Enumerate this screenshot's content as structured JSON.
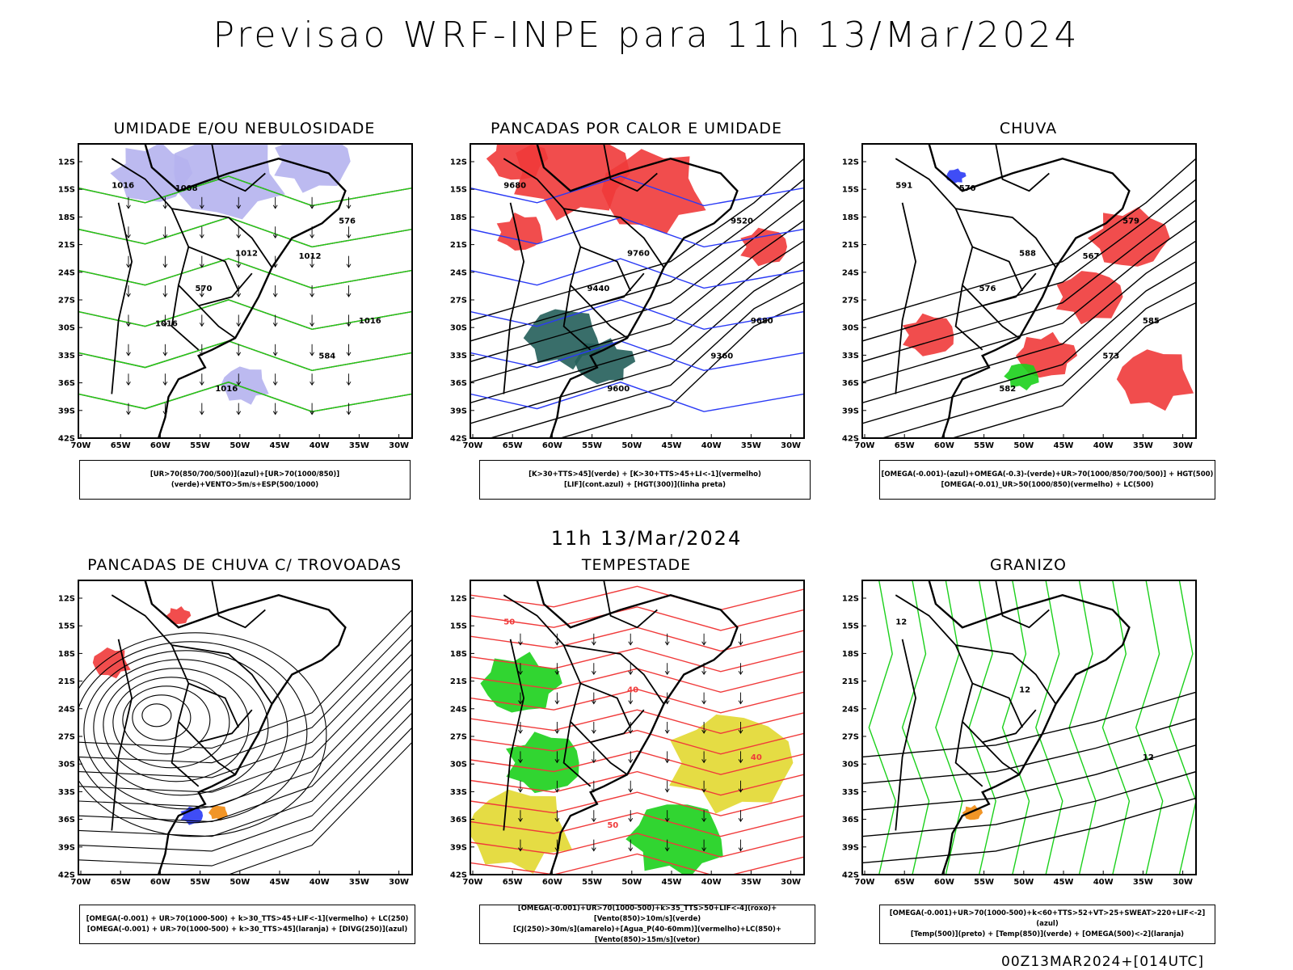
{
  "title": "Previsao WRF-INPE  para 11h 13/Mar/2024",
  "middle_title": "11h 13/Mar/2024",
  "footer": "00Z13MAR2024+[014UTC]",
  "lat_ticks": [
    "12S",
    "15S",
    "18S",
    "21S",
    "24S",
    "27S",
    "30S",
    "33S",
    "36S",
    "39S",
    "42S"
  ],
  "lon_ticks": [
    "70W",
    "65W",
    "60W",
    "55W",
    "50W",
    "45W",
    "40W",
    "35W",
    "30W"
  ],
  "colors": {
    "lavender": "#b5b3ee",
    "red": "#f03a3a",
    "green": "#1bd01b",
    "darkteal": "#235e5a",
    "blue": "#2a3af5",
    "yellow": "#e2d830",
    "orange": "#f08a10"
  },
  "panels": [
    {
      "title": "UMIDADE E/OU NEBULOSIDADE",
      "legend_lines": [
        "[UR>70(850/700/500)](azul)+[UR>70(1000/850)](verde)+VENTO>5m/s+ESP(500/1000)"
      ],
      "labels": [
        "1016",
        "1012",
        "1016",
        "1016",
        "576",
        "570",
        "584",
        "1008",
        "1012",
        "1016"
      ]
    },
    {
      "title": "PANCADAS POR CALOR E UMIDADE",
      "legend_lines": [
        "[K>30+TTS>45](verde) + [K>30+TTS>45+LI<-1](vermelho)",
        "[LIF](cont.azul) + [HGT(300)](linha preta)"
      ],
      "labels": [
        "9680",
        "9760",
        "9680",
        "9600",
        "9520",
        "9440",
        "9360"
      ]
    },
    {
      "title": "CHUVA",
      "legend_lines": [
        "[OMEGA(-0.001)-(azul)+OMEGA(-0.3)-(verde)+UR>70(1000/850/700/500)] + HGT(500)",
        "[OMEGA(-0.01)_UR>50(1000/850)(vermelho) + LC(500)"
      ],
      "labels": [
        "591",
        "588",
        "585",
        "582",
        "579",
        "576",
        "573",
        "570",
        "567"
      ]
    },
    {
      "title": "PANCADAS DE CHUVA C/ TROVOADAS",
      "legend_lines": [
        "[OMEGA(-0.001) + UR>70(1000-500) + k>30_TTS>45+LIF<-1](vermelho) + LC(250)",
        "[OMEGA(-0.001) + UR>70(1000-500) + k>30_TTS>45](laranja) + [DIVG(250)](azul)"
      ],
      "labels": []
    },
    {
      "title": "TEMPESTADE",
      "legend_lines": [
        "[OMEGA(-0.001)+UR>70(1000-500)+k>35_TTS>50+LIF<-4](roxo)+[Vento(850)>10m/s](verde)",
        "[CJ(250)>30m/s](amarelo)+[Agua_P(40-60mm)](vermelho)+LC(850)+[Vento(850)>15m/s](vetor)"
      ],
      "labels": [
        "50",
        "40",
        "40",
        "50"
      ]
    },
    {
      "title": "GRANIZO",
      "legend_lines": [
        "[OMEGA(-0.001)+UR>70(1000-500)+k<60+TTS>52+VT>25+SWEAT>220+LIF<-2](azul)",
        "[Temp(500)](preto) + [Temp(850)](verde) + [OMEGA(500)<-2](laranja)"
      ],
      "labels": [
        "12",
        "12",
        "12"
      ]
    }
  ]
}
